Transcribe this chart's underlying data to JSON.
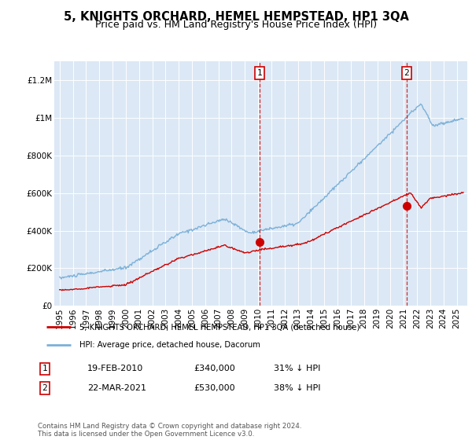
{
  "title": "5, KNIGHTS ORCHARD, HEMEL HEMPSTEAD, HP1 3QA",
  "subtitle": "Price paid vs. HM Land Registry's House Price Index (HPI)",
  "ylabel_ticks": [
    "£0",
    "£200K",
    "£400K",
    "£600K",
    "£800K",
    "£1M",
    "£1.2M"
  ],
  "ytick_vals": [
    0,
    200000,
    400000,
    600000,
    800000,
    1000000,
    1200000
  ],
  "ylim": [
    0,
    1300000
  ],
  "xlim_start": 1994.6,
  "xlim_end": 2025.8,
  "plot_bg_color": "#dce8f5",
  "line_color_hpi": "#7bb0d8",
  "line_color_property": "#cc0000",
  "sale1_x": 2010.12,
  "sale1_y": 340000,
  "sale2_x": 2021.22,
  "sale2_y": 530000,
  "legend_label_property": "5, KNIGHTS ORCHARD, HEMEL HEMPSTEAD, HP1 3QA (detached house)",
  "legend_label_hpi": "HPI: Average price, detached house, Dacorum",
  "table_rows": [
    [
      "1",
      "19-FEB-2010",
      "£340,000",
      "31% ↓ HPI"
    ],
    [
      "2",
      "22-MAR-2021",
      "£530,000",
      "38% ↓ HPI"
    ]
  ],
  "footer": "Contains HM Land Registry data © Crown copyright and database right 2024.\nThis data is licensed under the Open Government Licence v3.0.",
  "title_fontsize": 10.5,
  "subtitle_fontsize": 9,
  "tick_fontsize": 7.5
}
